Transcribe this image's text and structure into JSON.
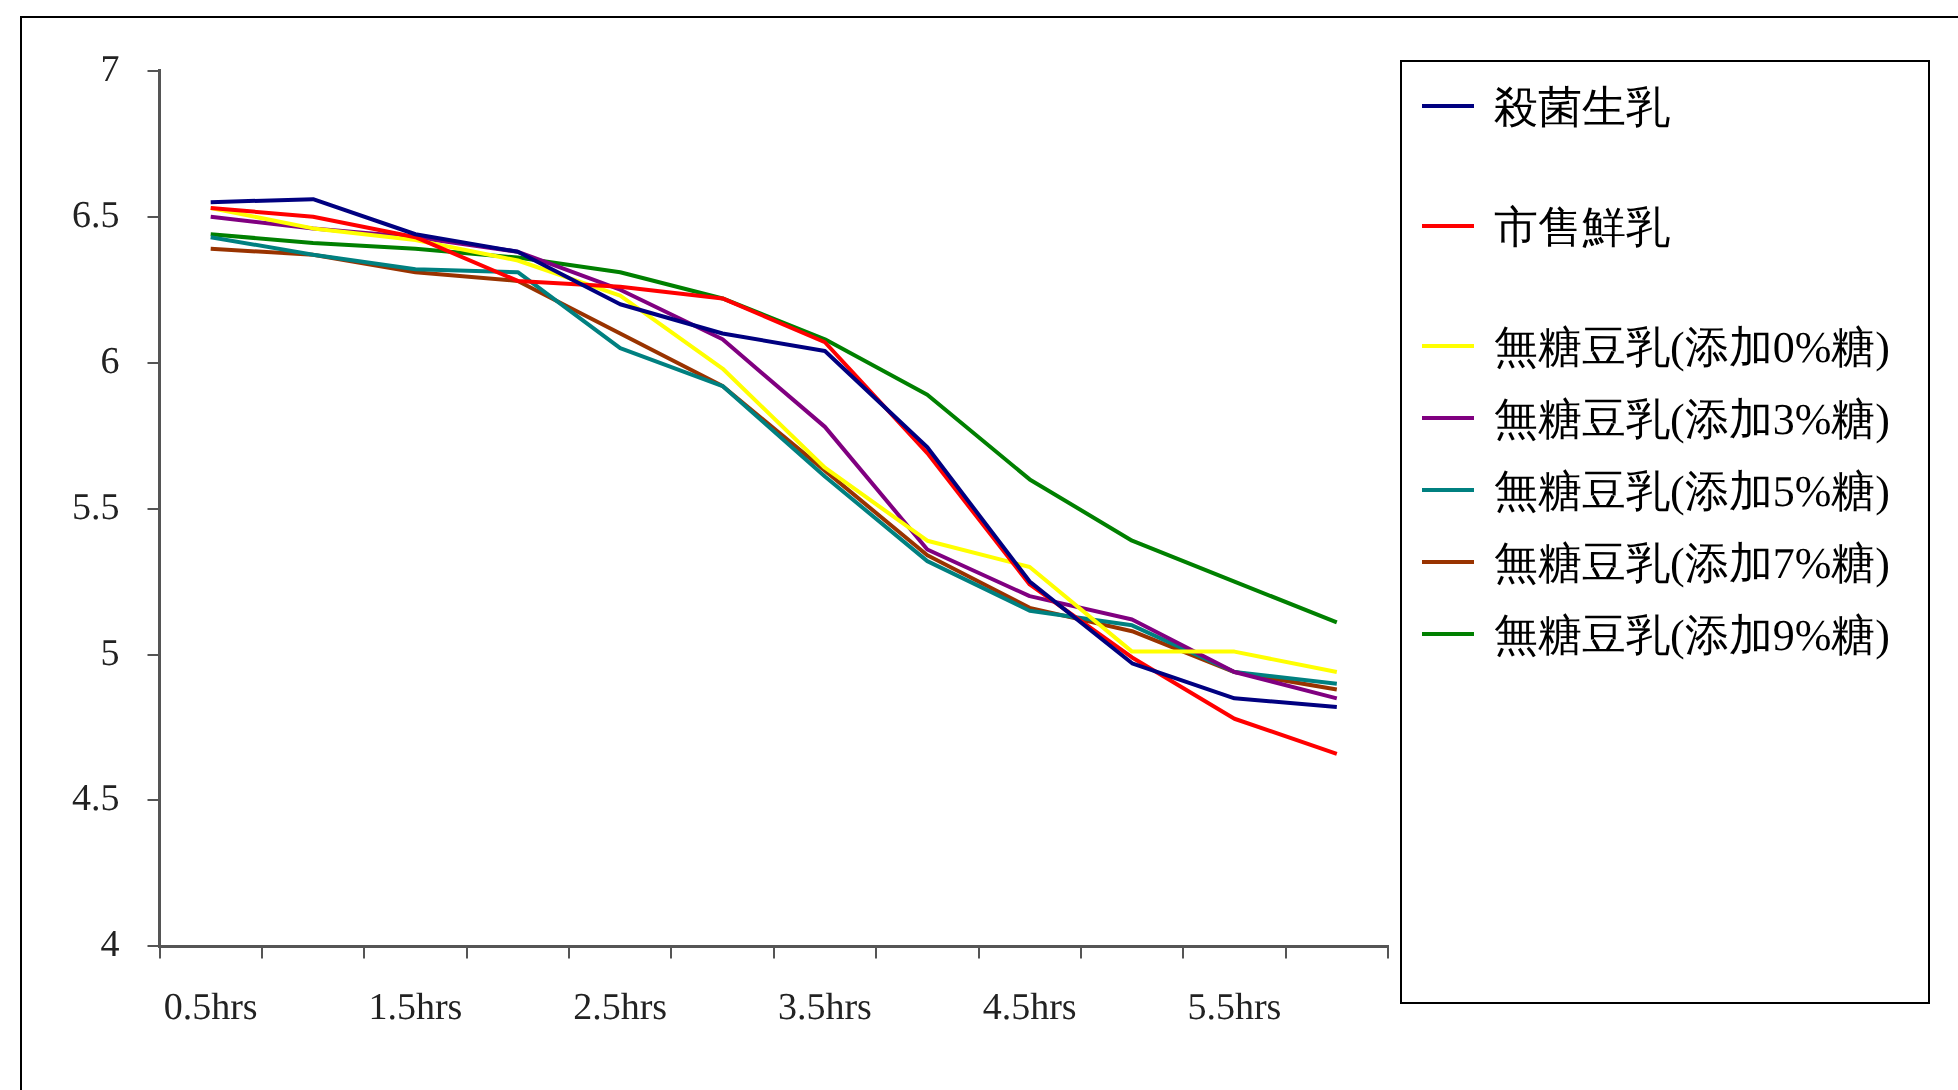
{
  "chart_data": {
    "type": "line",
    "categories": [
      "0.5hrs",
      null,
      "1.5hrs",
      null,
      "2.5hrs",
      null,
      "3.5hrs",
      null,
      "4.5hrs",
      null,
      "5.5hrs",
      null
    ],
    "ylim": [
      4,
      7
    ],
    "yticks": [
      4,
      4.5,
      5,
      5.5,
      6,
      6.5,
      7
    ],
    "grid": false,
    "legend": "right",
    "marker": "none",
    "line_style": "solid",
    "series": [
      {
        "name": "殺菌生乳",
        "color": "#000080",
        "values": [
          6.55,
          6.56,
          6.44,
          6.38,
          6.2,
          6.1,
          6.04,
          5.71,
          5.25,
          4.97,
          4.85,
          4.82
        ]
      },
      {
        "name": "市售鮮乳",
        "color": "#ff0000",
        "values": [
          6.53,
          6.5,
          6.43,
          6.28,
          6.26,
          6.22,
          6.07,
          5.69,
          5.24,
          4.99,
          4.78,
          4.66
        ]
      },
      {
        "name": "無糖豆乳(添加0%糖)",
        "color": "#ffff00",
        "values": [
          6.53,
          6.46,
          6.42,
          6.35,
          6.23,
          5.98,
          5.64,
          5.39,
          5.3,
          5.01,
          5.01,
          4.94
        ]
      },
      {
        "name": "無糖豆乳(添加3%糖)",
        "color": "#800080",
        "values": [
          6.5,
          6.46,
          6.43,
          6.38,
          6.25,
          6.08,
          5.78,
          5.36,
          5.2,
          5.12,
          4.94,
          4.85
        ]
      },
      {
        "name": "無糖豆乳(添加5%糖)",
        "color": "#008080",
        "values": [
          6.43,
          6.37,
          6.32,
          6.31,
          6.05,
          5.92,
          5.61,
          5.32,
          5.15,
          5.1,
          4.94,
          4.9
        ]
      },
      {
        "name": "無糖豆乳(添加7%糖)",
        "color": "#993300",
        "values": [
          6.39,
          6.37,
          6.31,
          6.28,
          6.1,
          5.92,
          5.63,
          5.34,
          5.16,
          5.08,
          4.94,
          4.88
        ]
      },
      {
        "name": "無糖豆乳(添加9%糖)",
        "color": "#008000",
        "values": [
          6.44,
          6.41,
          6.39,
          6.36,
          6.31,
          6.22,
          6.08,
          5.89,
          5.6,
          5.39,
          5.25,
          5.11
        ]
      }
    ]
  }
}
